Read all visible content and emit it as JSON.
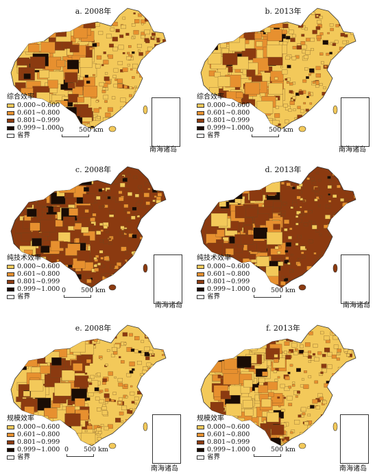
{
  "colors": {
    "class1": "#f3c95a",
    "class2": "#e7902f",
    "class3": "#8b3a10",
    "class4": "#1a0c05",
    "boundary": "#ffffff"
  },
  "legend_items": [
    {
      "range": "0.000~0.600",
      "color_key": "class1"
    },
    {
      "range": "0.601~0.800",
      "color_key": "class2"
    },
    {
      "range": "0.801~0.999",
      "color_key": "class3"
    },
    {
      "range": "0.999~1.000",
      "color_key": "class4"
    }
  ],
  "province_boundary_label": "省界",
  "scale_label": "500 km",
  "scale_zero": "0",
  "inset_label": "南海诸岛",
  "panels": [
    {
      "id": "a",
      "title": "a. 2008年",
      "legend_title": "综合效率",
      "dominant": "class1",
      "secondary": "class2"
    },
    {
      "id": "b",
      "title": "b. 2013年",
      "legend_title": "综合效率",
      "dominant": "class1",
      "secondary": "class2"
    },
    {
      "id": "c",
      "title": "c. 2008年",
      "legend_title": "纯技术效率",
      "dominant": "class3",
      "secondary": "class2"
    },
    {
      "id": "d",
      "title": "d. 2013年",
      "legend_title": "纯技术效率",
      "dominant": "class3",
      "secondary": "class2"
    },
    {
      "id": "e",
      "title": "e. 2008年",
      "legend_title": "规模效率",
      "dominant": "class1",
      "secondary": "class2"
    },
    {
      "id": "f",
      "title": "f. 2013年",
      "legend_title": "规模效率",
      "dominant": "class1",
      "secondary": "class2"
    }
  ]
}
